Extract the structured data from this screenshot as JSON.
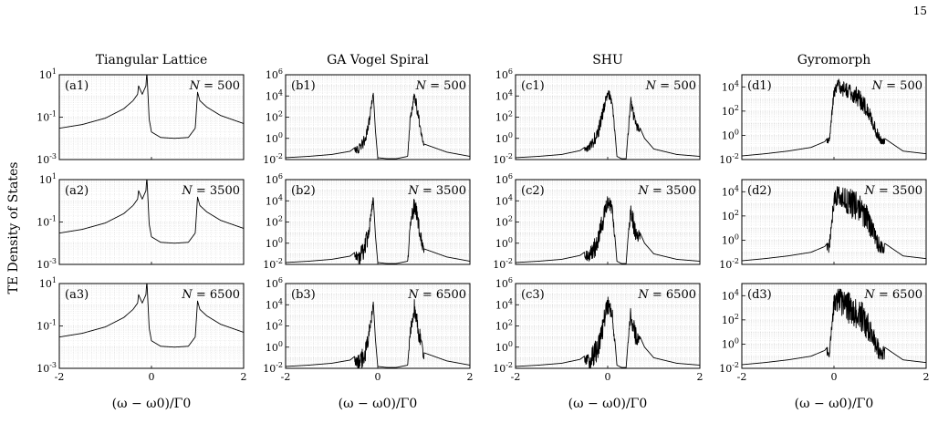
{
  "page_number": "15",
  "figure": {
    "ylabel": "TE Density of States",
    "xlabel": "(ω − ω0)/Γ0",
    "columns": [
      {
        "title": "Tiangular Lattice",
        "ymin_exp": -3,
        "ymax_exp": 1,
        "tick_exps": [
          -3,
          -1,
          1
        ]
      },
      {
        "title": "GA Vogel Spiral",
        "ymin_exp": -2,
        "ymax_exp": 6,
        "tick_exps": [
          -2,
          0,
          2,
          4,
          6
        ]
      },
      {
        "title": "SHU",
        "ymin_exp": -2,
        "ymax_exp": 6,
        "tick_exps": [
          -2,
          0,
          2,
          4,
          6
        ]
      },
      {
        "title": "Gyromorph",
        "ymin_exp": -2,
        "ymax_exp": 5,
        "tick_exps": [
          -2,
          0,
          2,
          4
        ]
      }
    ],
    "rows": [
      {
        "n_label": "N = 500"
      },
      {
        "n_label": "N = 3500"
      },
      {
        "n_label": "N = 6500"
      }
    ],
    "panel_labels": [
      [
        "(a1)",
        "(b1)",
        "(c1)",
        "(d1)"
      ],
      [
        "(a2)",
        "(b2)",
        "(c2)",
        "(d2)"
      ],
      [
        "(a3)",
        "(b3)",
        "(c3)",
        "(d3)"
      ]
    ],
    "x_tick_labels": [
      "-2",
      "0",
      "2"
    ]
  },
  "chart_data": {
    "type": "line",
    "layout": "3 rows x 4 columns small multiples",
    "title": "",
    "xlabel": "(ω − ω0)/Γ0",
    "ylabel": "TE Density of States",
    "xlim": [
      -2,
      2
    ],
    "yscale": "log",
    "x_ticks": [
      -2,
      0,
      2
    ],
    "grid": true,
    "columns": [
      "Tiangular Lattice",
      "GA Vogel Spiral",
      "SHU",
      "Gyromorph"
    ],
    "rows": [
      "N = 500",
      "N = 3500",
      "N = 6500"
    ],
    "series": [
      {
        "column": "Tiangular Lattice",
        "ylim": [
          0.001,
          10
        ],
        "x": [
          -2,
          -1.5,
          -1,
          -0.6,
          -0.4,
          -0.3,
          -0.28,
          -0.2,
          -0.12,
          -0.1,
          -0.05,
          0,
          0.2,
          0.5,
          0.8,
          0.95,
          1,
          1.05,
          1.2,
          1.5,
          2
        ],
        "y": [
          0.03,
          0.045,
          0.09,
          0.25,
          0.6,
          1.2,
          3,
          1.2,
          3,
          15,
          0.08,
          0.02,
          0.011,
          0.01,
          0.011,
          0.03,
          1.5,
          0.6,
          0.3,
          0.12,
          0.05
        ]
      },
      {
        "column": "GA Vogel Spiral",
        "ylim": [
          0.01,
          1000000
        ],
        "x": [
          -2,
          -1.5,
          -1,
          -0.6,
          -0.4,
          -0.3,
          -0.2,
          -0.1,
          -0.05,
          0,
          0.2,
          0.4,
          0.65,
          0.7,
          0.8,
          1,
          1.5,
          2
        ],
        "y": [
          0.015,
          0.02,
          0.03,
          0.06,
          0.3,
          2,
          50,
          30000,
          5,
          0.015,
          0.012,
          0.012,
          0.02,
          100,
          50000,
          0.3,
          0.05,
          0.02
        ]
      },
      {
        "column": "SHU",
        "ylim": [
          0.01,
          1000000
        ],
        "x": [
          -2,
          -1.5,
          -1,
          -0.6,
          -0.4,
          -0.2,
          0,
          0.1,
          0.2,
          0.3,
          0.4,
          0.5,
          0.6,
          0.8,
          1,
          1.5,
          2
        ],
        "y": [
          0.015,
          0.02,
          0.03,
          0.07,
          0.3,
          20,
          100000,
          5000,
          0.02,
          0.012,
          0.012,
          10000,
          100,
          1,
          0.1,
          0.03,
          0.02
        ]
      },
      {
        "column": "Gyromorph",
        "ylim": [
          0.01,
          100000
        ],
        "x": [
          -2,
          -1.5,
          -1,
          -0.5,
          -0.2,
          -0.1,
          0,
          0.1,
          0.3,
          0.5,
          0.7,
          0.9,
          1,
          1.2,
          1.5,
          2
        ],
        "y": [
          0.02,
          0.03,
          0.05,
          0.1,
          0.3,
          1,
          10000,
          50000,
          20000,
          10000,
          1000,
          10,
          1,
          0.3,
          0.05,
          0.03
        ]
      }
    ]
  }
}
